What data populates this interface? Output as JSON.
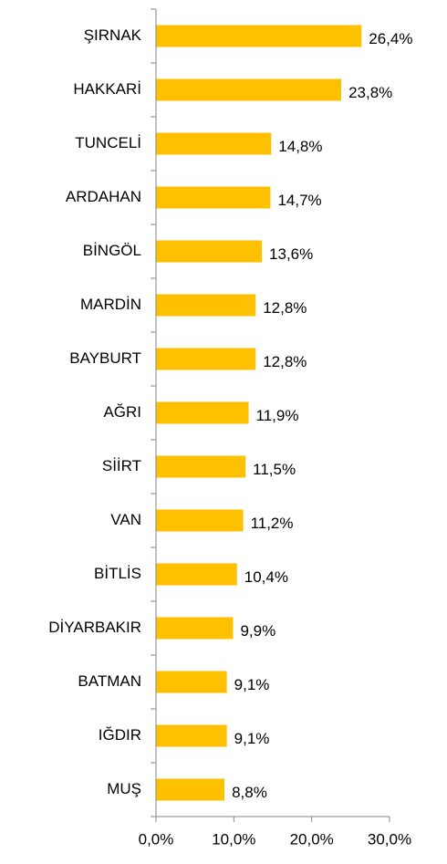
{
  "chart_data": {
    "type": "bar",
    "orientation": "horizontal",
    "categories": [
      "ŞIRNAK",
      "HAKKARİ",
      "TUNCELİ",
      "ARDAHAN",
      "BİNGÖL",
      "MARDİN",
      "BAYBURT",
      "AĞRI",
      "SİİRT",
      "VAN",
      "BİTLİS",
      "DİYARBAKIR",
      "BATMAN",
      "IĞDIR",
      "MUŞ"
    ],
    "values": [
      26.4,
      23.8,
      14.8,
      14.7,
      13.6,
      12.8,
      12.8,
      11.9,
      11.5,
      11.2,
      10.4,
      9.9,
      9.1,
      9.1,
      8.8
    ],
    "value_labels": [
      "26,4%",
      "23,8%",
      "14,8%",
      "14,7%",
      "13,6%",
      "12,8%",
      "12,8%",
      "11,9%",
      "11,5%",
      "11,2%",
      "10,4%",
      "9,9%",
      "9,1%",
      "9,1%",
      "8,8%"
    ],
    "color": "#FFC000",
    "xlim": [
      0,
      30
    ],
    "xticks": [
      {
        "value": 0,
        "label": "0,0%"
      },
      {
        "value": 10,
        "label": "10,0%"
      },
      {
        "value": 20,
        "label": "20,0%"
      },
      {
        "value": 30,
        "label": "30,0%"
      }
    ],
    "grid": false
  }
}
